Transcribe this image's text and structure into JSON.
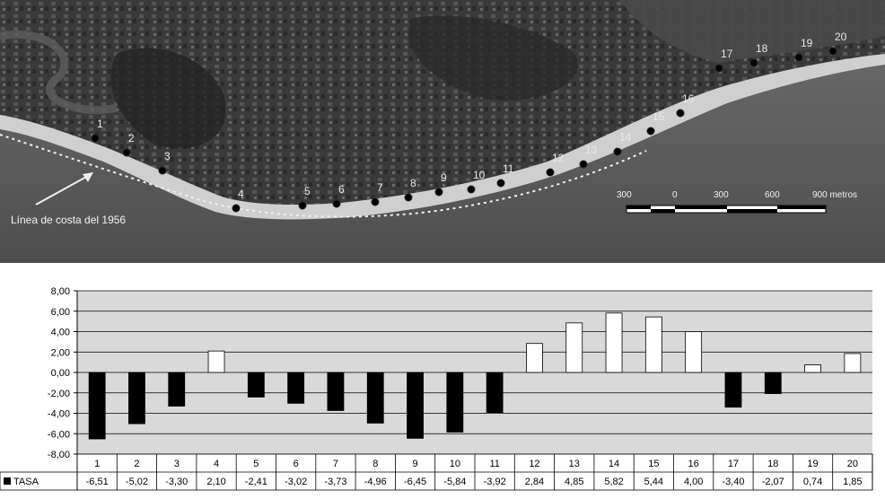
{
  "photo": {
    "caption": "Línea de costa del 1956",
    "point_labels": [
      "1",
      "2",
      "3",
      "4",
      "5",
      "6",
      "7",
      "8",
      "9",
      "10",
      "11",
      "12",
      "13",
      "14",
      "15",
      "16",
      "17",
      "18",
      "19",
      "20"
    ],
    "scale_labels": [
      "300",
      "0",
      "300",
      "600",
      "900 metros"
    ]
  },
  "chart_data": {
    "type": "bar",
    "categories": [
      "1",
      "2",
      "3",
      "4",
      "5",
      "6",
      "7",
      "8",
      "9",
      "10",
      "11",
      "12",
      "13",
      "14",
      "15",
      "16",
      "17",
      "18",
      "19",
      "20"
    ],
    "series": [
      {
        "name": "TASA",
        "values": [
          -6.51,
          -5.02,
          -3.3,
          2.1,
          -2.41,
          -3.02,
          -3.73,
          -4.96,
          -6.45,
          -5.84,
          -3.92,
          2.84,
          4.85,
          5.82,
          5.44,
          4.0,
          -3.4,
          -2.07,
          0.74,
          1.85
        ]
      }
    ],
    "value_labels": [
      "-6,51",
      "-5,02",
      "-3,30",
      "2,10",
      "-2,41",
      "-3,02",
      "-3,73",
      "-4,96",
      "-6,45",
      "-5,84",
      "-3,92",
      "2,84",
      "4,85",
      "5,82",
      "5,44",
      "4,00",
      "-3,40",
      "-2,07",
      "0,74",
      "1,85"
    ],
    "yticks": [
      "8,00",
      "6,00",
      "4,00",
      "2,00",
      "0,00",
      "-2,00",
      "-4,00",
      "-6,00",
      "-8,00"
    ],
    "ylim": [
      -8,
      8
    ],
    "colors": {
      "negative": "#000000",
      "positive": "#ffffff",
      "plot_bg": "#d9d9d9",
      "grid": "#000000"
    },
    "grid": true,
    "legend": "data-table"
  }
}
